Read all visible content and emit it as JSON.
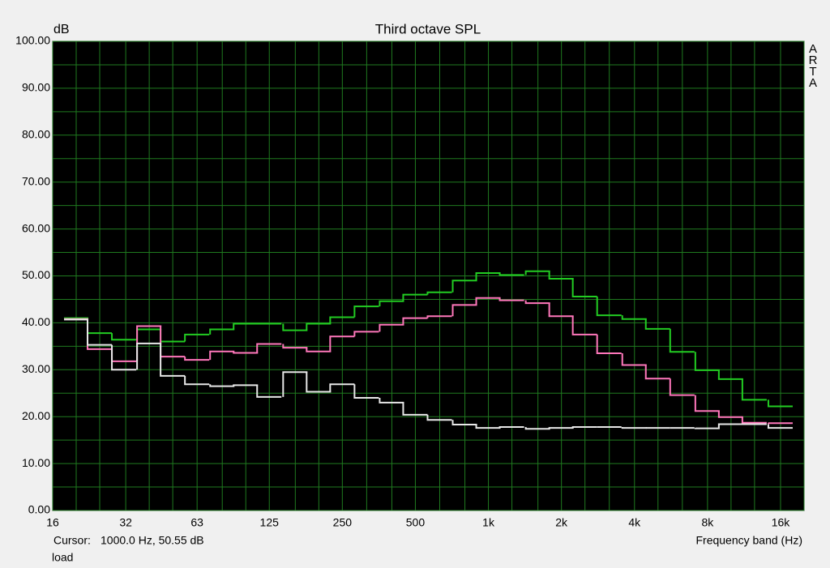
{
  "chart_data": {
    "type": "step",
    "title": "Third octave SPL",
    "ylabel": "dB",
    "xlabel": "Frequency band (Hz)",
    "watermark": "ARTA",
    "cursor_label": "Cursor:",
    "cursor_value": "1000.0 Hz, 50.55 dB",
    "status": "load",
    "x": [
      20,
      25,
      31.5,
      40,
      50,
      63,
      80,
      100,
      125,
      160,
      200,
      250,
      315,
      400,
      500,
      630,
      800,
      1000,
      1250,
      1600,
      2000,
      2500,
      3150,
      4000,
      5000,
      6300,
      8000,
      10000,
      12500,
      16000
    ],
    "series": [
      {
        "color": "#22cc22",
        "values": [
          41.0,
          37.8,
          36.4,
          38.6,
          36.0,
          37.5,
          38.6,
          39.8,
          39.8,
          38.4,
          39.8,
          41.2,
          43.5,
          44.6,
          46.0,
          46.5,
          49.0,
          50.6,
          50.2,
          51.0,
          49.4,
          45.6,
          41.6,
          40.8,
          38.7,
          33.8,
          29.9,
          28.0,
          23.6,
          22.2
        ]
      },
      {
        "color": "#ff77bb",
        "values": [
          40.8,
          34.4,
          31.8,
          39.3,
          32.8,
          32.1,
          33.9,
          33.6,
          35.5,
          34.7,
          33.9,
          37.1,
          38.1,
          39.6,
          41.0,
          41.4,
          43.8,
          45.3,
          44.8,
          44.2,
          41.4,
          37.5,
          33.5,
          31.0,
          28.1,
          24.6,
          21.2,
          19.9,
          18.7,
          18.6
        ]
      },
      {
        "color": "#e8e8e8",
        "values": [
          40.7,
          35.3,
          30.0,
          35.6,
          28.7,
          26.9,
          26.5,
          26.7,
          24.2,
          29.5,
          25.3,
          26.9,
          24.0,
          23.0,
          20.4,
          19.3,
          18.3,
          17.6,
          17.8,
          17.4,
          17.6,
          17.8,
          17.8,
          17.6,
          17.6,
          17.6,
          17.5,
          18.4,
          18.4,
          17.6
        ]
      }
    ],
    "xscale": "log",
    "xlim": [
      16,
      20000
    ],
    "xticks": [
      16,
      32,
      63,
      125,
      250,
      500,
      {
        "value": 1000,
        "label": "1k"
      },
      {
        "value": 2000,
        "label": "2k"
      },
      {
        "value": 4000,
        "label": "4k"
      },
      {
        "value": 8000,
        "label": "8k"
      },
      {
        "value": 16000,
        "label": "16k"
      }
    ],
    "xminorticks": [
      20,
      25,
      40,
      50,
      80,
      100,
      160,
      200,
      315,
      400,
      630,
      800,
      1250,
      1600,
      2500,
      3150,
      5000,
      6300,
      10000,
      12500,
      20000
    ],
    "ylim": [
      0,
      100
    ],
    "yticks": [
      {
        "value": 0,
        "label": "0.00"
      },
      {
        "value": 10,
        "label": "10.00"
      },
      {
        "value": 20,
        "label": "20.00"
      },
      {
        "value": 30,
        "label": "30.00"
      },
      {
        "value": 40,
        "label": "40.00"
      },
      {
        "value": 50,
        "label": "50.00"
      },
      {
        "value": 60,
        "label": "60.00"
      },
      {
        "value": 70,
        "label": "70.00"
      },
      {
        "value": 80,
        "label": "80.00"
      },
      {
        "value": 90,
        "label": "90.00"
      },
      {
        "value": 100,
        "label": "100.00"
      }
    ],
    "yminorticks": [
      5,
      15,
      25,
      35,
      45,
      55,
      65,
      75,
      85,
      95
    ],
    "grid": true,
    "background": "#000000",
    "grid_color": "#1f7a1f"
  }
}
